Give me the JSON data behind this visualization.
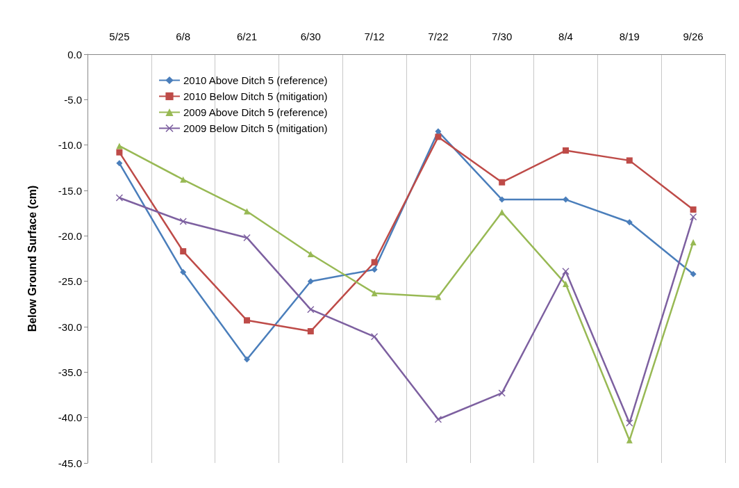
{
  "chart_data": {
    "type": "line",
    "ylabel": "Below Ground Surface (cm)",
    "categories": [
      "5/25",
      "6/8",
      "6/21",
      "6/30",
      "7/12",
      "7/22",
      "7/30",
      "8/4",
      "8/19",
      "9/26"
    ],
    "series": [
      {
        "name": "2010 Above Ditch 5 (reference)",
        "color": "#4a7ebb",
        "marker": "diamond",
        "values": [
          -12.0,
          -24.0,
          -33.6,
          -25.0,
          -23.7,
          -8.5,
          -16.0,
          -16.0,
          -18.5,
          -24.2
        ]
      },
      {
        "name": "2010 Below Ditch 5 (mitigation)",
        "color": "#be4b48",
        "marker": "square",
        "values": [
          -10.8,
          -21.7,
          -29.3,
          -30.5,
          -22.9,
          -9.1,
          -14.1,
          -10.6,
          -11.7,
          -17.1
        ]
      },
      {
        "name": "2009 Above Ditch 5 (reference)",
        "color": "#98b954",
        "marker": "triangle",
        "values": [
          -10.1,
          -13.8,
          -17.3,
          -22.0,
          -26.3,
          -26.7,
          -17.4,
          -25.3,
          -42.5,
          -20.7
        ]
      },
      {
        "name": "2009 Below Ditch 5 (mitigation)",
        "color": "#7d60a0",
        "marker": "cross",
        "values": [
          -15.8,
          -18.4,
          -20.2,
          -28.1,
          -31.1,
          -40.2,
          -37.3,
          -23.9,
          -40.6,
          -17.9
        ]
      }
    ],
    "ylim": [
      -45,
      0
    ],
    "yticks": [
      {
        "value": 0,
        "label": "0.0"
      },
      {
        "value": -5,
        "label": "-5.0"
      },
      {
        "value": -10,
        "label": "-10.0"
      },
      {
        "value": -15,
        "label": "-15.0"
      },
      {
        "value": -20,
        "label": "-20.0"
      },
      {
        "value": -25,
        "label": "-25.0"
      },
      {
        "value": -30,
        "label": "-30.0"
      },
      {
        "value": -35,
        "label": "-35.0"
      },
      {
        "value": -40,
        "label": "-40.0"
      },
      {
        "value": -45,
        "label": "-45.0"
      }
    ],
    "grid": "x",
    "legend": "top left",
    "line_style": "solid"
  }
}
